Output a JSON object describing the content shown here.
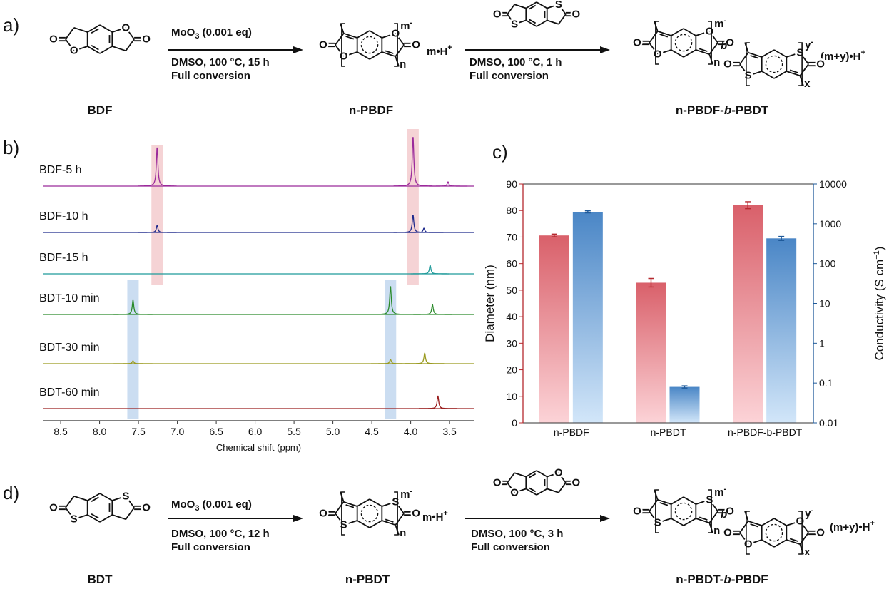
{
  "labels": {
    "O": "O",
    "S": "S",
    "n": "n",
    "x": "x",
    "b": "b",
    "m": "m",
    "y": "y",
    "minus": "-"
  },
  "scheme_a": {
    "panel_label": "a)",
    "reagent": [
      "MoO",
      "3",
      " (0.001 eq)"
    ],
    "step_1": [
      "DMSO, 100 °C, 15 h",
      "Full conversion"
    ],
    "counterion_1": [
      "m•H",
      "+"
    ],
    "step_2": [
      "DMSO, 100 °C, 1 h",
      "Full conversion"
    ],
    "counterion_2": [
      "(m+y)•H",
      "+"
    ],
    "compounds": [
      "BDF",
      "n-PBDF",
      [
        "n-PBDF-",
        "b",
        "-PBDT"
      ]
    ]
  },
  "scheme_d": {
    "panel_label": "d)",
    "reagent": [
      "MoO",
      "3",
      " (0.001 eq)"
    ],
    "step_1": [
      "DMSO, 100 °C, 12 h",
      "Full conversion"
    ],
    "counterion_1": [
      "m•H",
      "+"
    ],
    "step_2": [
      "DMSO, 100 °C, 3 h",
      "Full conversion"
    ],
    "counterion_2": [
      "(m+y)•H",
      "+"
    ],
    "compounds": [
      "BDT",
      "n-PBDT",
      [
        "n-PBDT-",
        "b",
        "-PBDF"
      ]
    ]
  },
  "chart_data": [
    {
      "type": "spectrum",
      "panel_label": "b)",
      "xlabel": "Chemical shift (ppm)",
      "xlim": [
        8.73,
        3.18
      ],
      "xticks": [
        8.5,
        {
          "value": 8,
          "label": "8.0"
        },
        7.5,
        {
          "value": 7,
          "label": "7.0"
        },
        6.5,
        {
          "value": 6,
          "label": "6.0"
        },
        5.5,
        {
          "value": 5,
          "label": "5.0"
        },
        4.5,
        {
          "value": 4,
          "label": "4.0"
        },
        3.5
      ],
      "series": [
        {
          "name": "BDF-5 h",
          "color": "#9b2a9b",
          "x": [
            7.26,
            3.97,
            3.52
          ],
          "values": [
            55,
            70,
            6
          ]
        },
        {
          "name": "BDF-10 h",
          "color": "#1f2a8c",
          "x": [
            7.26,
            3.97,
            3.83
          ],
          "values": [
            10,
            25,
            6
          ]
        },
        {
          "name": "BDF-15 h",
          "color": "#1f9a9a",
          "x": [
            3.75
          ],
          "values": [
            12
          ]
        },
        {
          "name": "BDT-10 min",
          "color": "#2a8a2a",
          "x": [
            7.57,
            4.26,
            3.72
          ],
          "values": [
            20,
            40,
            14
          ]
        },
        {
          "name": "BDT-30 min",
          "color": "#9a9a1f",
          "x": [
            7.57,
            4.26,
            3.82
          ],
          "values": [
            4,
            6,
            15
          ]
        },
        {
          "name": "BDT-60 min",
          "color": "#9a1f1f",
          "x": [
            3.65
          ],
          "values": [
            18
          ]
        }
      ]
    },
    {
      "type": "bar",
      "panel_label": "c)",
      "categories": [
        "n-PBDF",
        "n-PBDT",
        "n-PBDF-b-PBDT"
      ],
      "ylabel": "Diameter (nm)",
      "y2label": [
        "Conductivity (S cm",
        "−1",
        ")"
      ],
      "ylim": [
        0,
        90
      ],
      "yticks": [
        0,
        10,
        20,
        30,
        40,
        50,
        60,
        70,
        80,
        90
      ],
      "y2lim": [
        0.01,
        10000
      ],
      "y2ticks": [
        0.01,
        0.1,
        1,
        10,
        100,
        1000,
        10000
      ],
      "y2scale": "log",
      "series": [
        {
          "color": "#d9606a",
          "values": [
            70.6,
            52.8,
            82
          ],
          "errors": [
            0.5,
            1.6,
            1.3
          ]
        },
        {
          "color": "#4a86c6",
          "axis": "y2",
          "values": [
            2000,
            0.08,
            430
          ],
          "errors": [
            120,
            0.005,
            50
          ]
        }
      ]
    }
  ]
}
